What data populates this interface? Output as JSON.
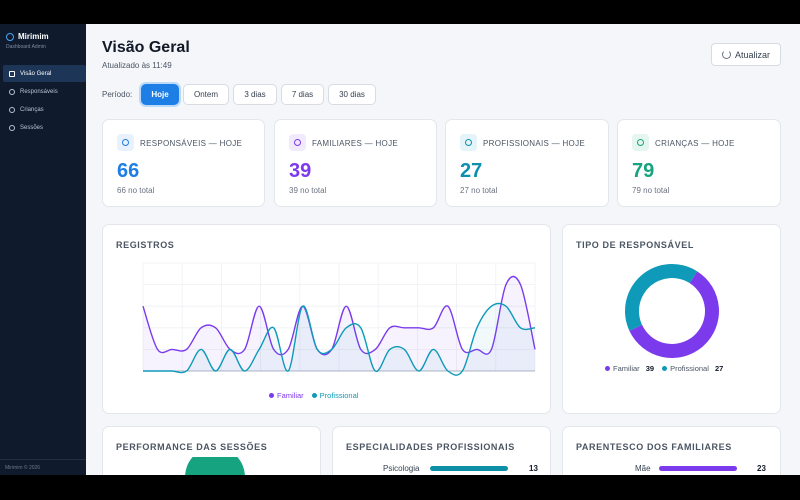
{
  "sidebar": {
    "brand": "Mirimim",
    "subtitle": "Dashboard Admin",
    "items": [
      {
        "label": "Visão Geral",
        "icon": "grid-icon",
        "active": true
      },
      {
        "label": "Responsáveis",
        "icon": "users-icon",
        "active": false
      },
      {
        "label": "Crianças",
        "icon": "baby-icon",
        "active": false
      },
      {
        "label": "Sessões",
        "icon": "target-icon",
        "active": false
      }
    ],
    "footer": "Mirimim © 2026"
  },
  "header": {
    "title": "Visão Geral",
    "updated": "Atualizado às 11:49",
    "refresh_label": "Atualizar"
  },
  "period": {
    "label": "Período:",
    "options": [
      "Hoje",
      "Ontem",
      "3 dias",
      "7 dias",
      "30 dias"
    ],
    "selected": "Hoje"
  },
  "stats": [
    {
      "label": "RESPONSÁVEIS — HOJE",
      "value": "66",
      "total": "66 no total",
      "color": "#1d7fe5"
    },
    {
      "label": "FAMILIARES — HOJE",
      "value": "39",
      "total": "39 no total",
      "color": "#7c3aed"
    },
    {
      "label": "PROFISSIONAIS — HOJE",
      "value": "27",
      "total": "27 no total",
      "color": "#0e8fb0"
    },
    {
      "label": "CRIANÇAS — HOJE",
      "value": "79",
      "total": "79 no total",
      "color": "#16a37f"
    }
  ],
  "chart_data": [
    {
      "type": "line",
      "title": "REGISTROS",
      "x": [
        0,
        1,
        2,
        3,
        4,
        5,
        6,
        7,
        8,
        9,
        10,
        11,
        12,
        13,
        14,
        15,
        16,
        17,
        18,
        19,
        20,
        21,
        22,
        23,
        24,
        25,
        26,
        27
      ],
      "series": [
        {
          "name": "Familiar",
          "color": "#7c3aed",
          "values": [
            3,
            1,
            1,
            1,
            2,
            2,
            1,
            1,
            3,
            1,
            1,
            3,
            1,
            1,
            3,
            1,
            1,
            2,
            2,
            2,
            2,
            3,
            1,
            1,
            1,
            4,
            4,
            1
          ]
        },
        {
          "name": "Profissional",
          "color": "#0e9ab8",
          "values": [
            0,
            0,
            0,
            0,
            1,
            0,
            1,
            0,
            1,
            2,
            0,
            3,
            1,
            1,
            2,
            2,
            0,
            1,
            1,
            0,
            1,
            0,
            0,
            2,
            3,
            3,
            2,
            2
          ]
        }
      ],
      "ylim": [
        0,
        5
      ],
      "legend": "bottom",
      "grid": true
    },
    {
      "type": "pie",
      "title": "TIPO DE RESPONSÁVEL",
      "categories": [
        "Familiar",
        "Profissional"
      ],
      "values": [
        39,
        27
      ],
      "colors": [
        "#7c3aed",
        "#0e9ab8"
      ],
      "legend": "bottom"
    },
    {
      "type": "bar",
      "title": "ESPECIALIDADES PROFISSIONAIS",
      "categories": [
        "Psicologia"
      ],
      "values": [
        13
      ],
      "xlim": [
        0,
        13
      ],
      "color": "#0e8fa8"
    },
    {
      "type": "bar",
      "title": "PARENTESCO DOS FAMILIARES",
      "categories": [
        "Mãe"
      ],
      "values": [
        23
      ],
      "xlim": [
        0,
        23
      ],
      "color": "#7c3aed"
    }
  ],
  "performance": {
    "title": "PERFORMANCE DAS SESSÕES",
    "color": "#16a37f"
  }
}
